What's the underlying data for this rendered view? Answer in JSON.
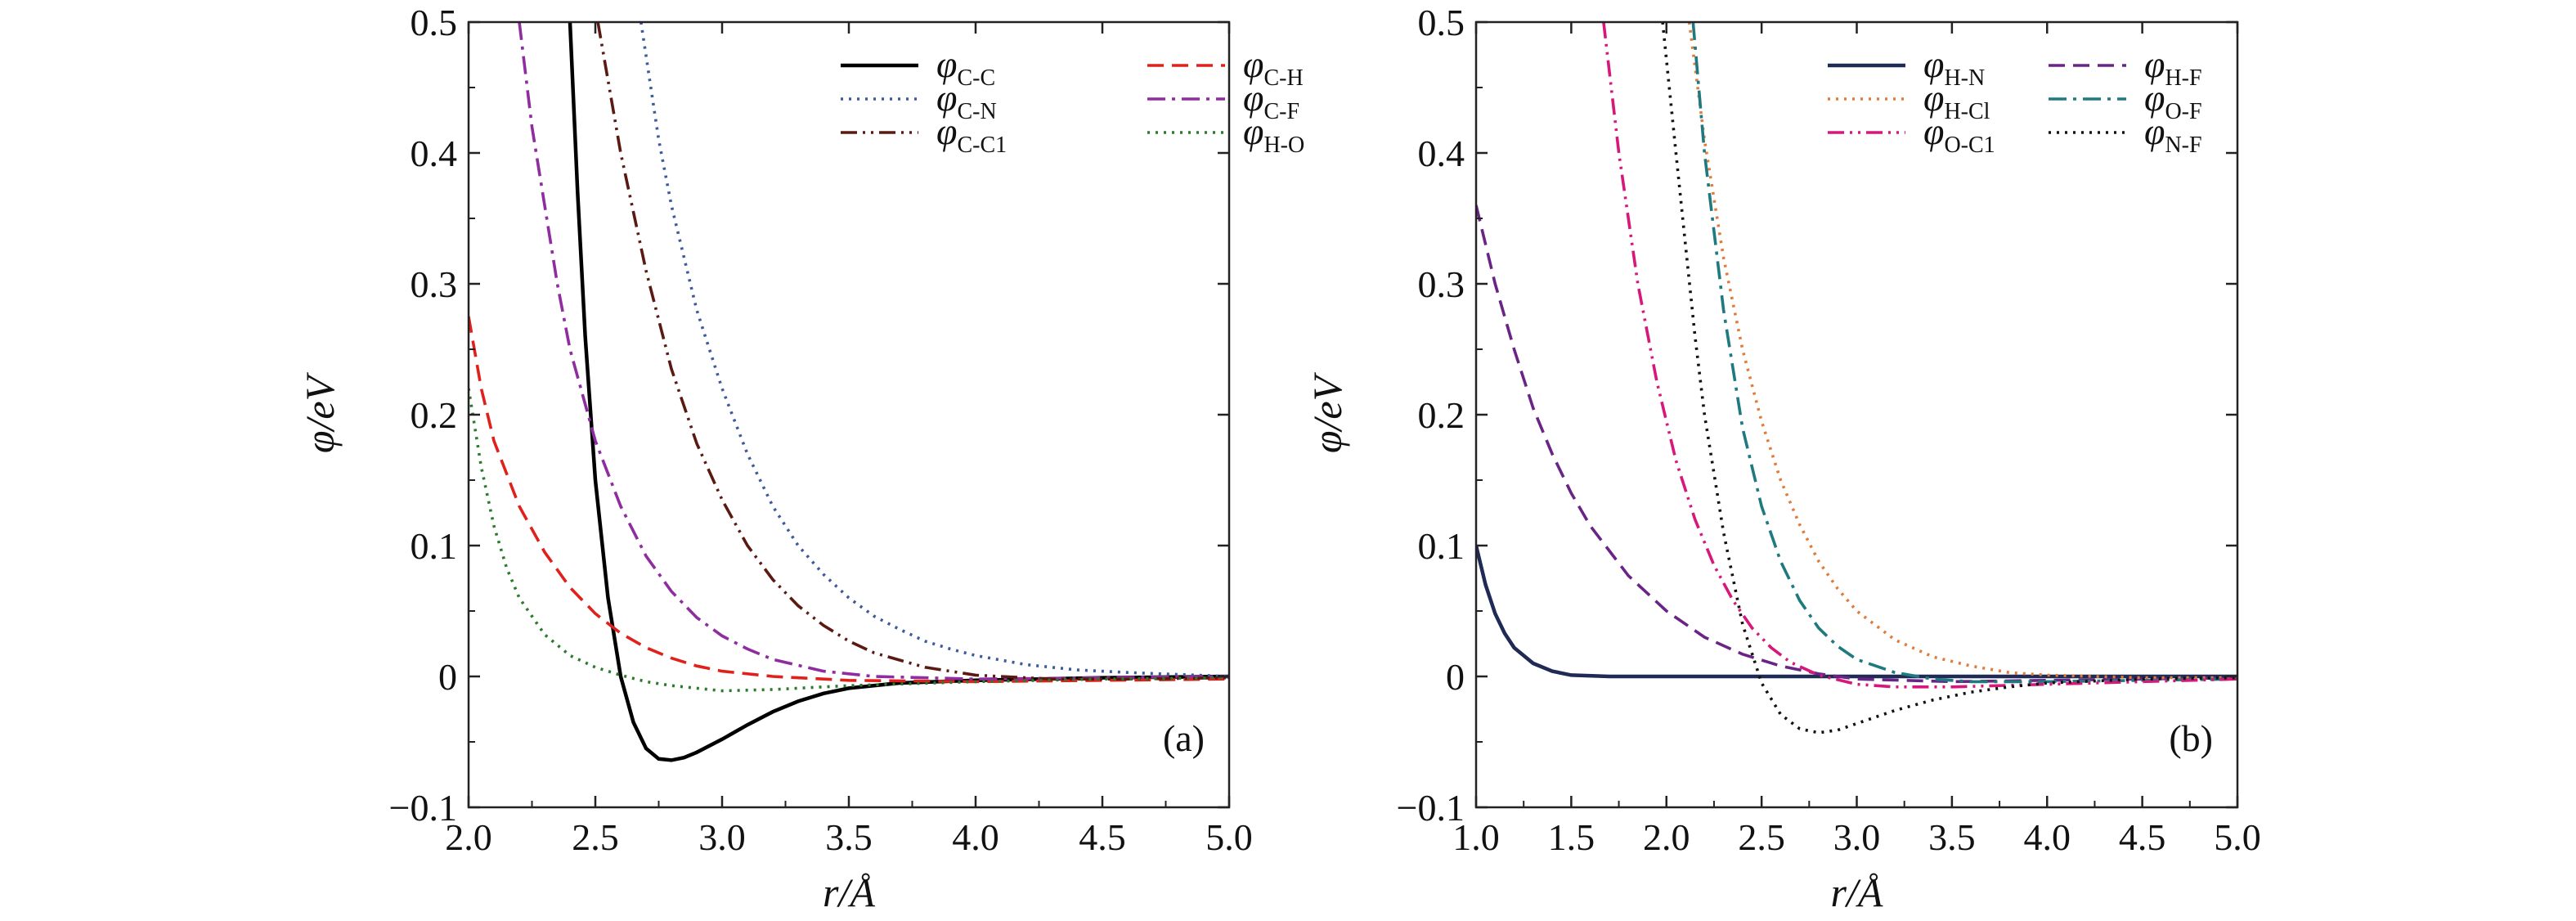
{
  "figure": {
    "panels": [
      {
        "panel_label": "(a)",
        "xlabel": "r/Å",
        "ylabel": "φ/eV",
        "xticks": [
          "2.0",
          "2.5",
          "3.0",
          "3.5",
          "4.0",
          "4.5",
          "5.0"
        ],
        "yticks": [
          "−0.1",
          "0",
          "0.1",
          "0.2",
          "0.3",
          "0.4",
          "0.5"
        ]
      },
      {
        "panel_label": "(b)",
        "xlabel": "r/Å",
        "ylabel": "φ/eV",
        "xticks": [
          "1.0",
          "1.5",
          "2.0",
          "2.5",
          "3.0",
          "3.5",
          "4.0",
          "4.5",
          "5.0"
        ],
        "yticks": [
          "−0.1",
          "0",
          "0.1",
          "0.2",
          "0.3",
          "0.4",
          "0.5"
        ]
      }
    ]
  },
  "chart_data": [
    {
      "type": "line",
      "panel_label": "(a)",
      "xlabel": "r/Å",
      "ylabel": "φ/eV",
      "xlim": [
        2.0,
        5.0
      ],
      "ylim": [
        -0.1,
        0.5
      ],
      "grid": false,
      "legend_position": "top-right",
      "series": [
        {
          "name": "φC-C",
          "symbol": "φ",
          "subscript": "C-C",
          "color": "#000000",
          "dash": "solid",
          "x": [
            2.4,
            2.43,
            2.46,
            2.5,
            2.55,
            2.6,
            2.65,
            2.7,
            2.75,
            2.8,
            2.85,
            2.9,
            3.0,
            3.1,
            3.2,
            3.3,
            3.4,
            3.5,
            3.7,
            4.0,
            4.5,
            5.0
          ],
          "y": [
            0.5,
            0.37,
            0.26,
            0.15,
            0.06,
            0.0,
            -0.035,
            -0.055,
            -0.063,
            -0.064,
            -0.062,
            -0.058,
            -0.048,
            -0.037,
            -0.027,
            -0.019,
            -0.013,
            -0.009,
            -0.005,
            -0.003,
            -0.001,
            0.0
          ]
        },
        {
          "name": "φC-H",
          "symbol": "φ",
          "subscript": "C-H",
          "color": "#e0201b",
          "dash": "dashed",
          "x": [
            2.0,
            2.05,
            2.1,
            2.2,
            2.3,
            2.4,
            2.5,
            2.6,
            2.7,
            2.8,
            2.9,
            3.0,
            3.2,
            3.5,
            4.0,
            4.5,
            5.0
          ],
          "y": [
            0.275,
            0.22,
            0.18,
            0.13,
            0.095,
            0.068,
            0.048,
            0.033,
            0.022,
            0.014,
            0.008,
            0.004,
            0.0,
            -0.003,
            -0.004,
            -0.003,
            -0.002
          ]
        },
        {
          "name": "φC-N",
          "symbol": "φ",
          "subscript": "C-N",
          "color": "#3d5a9a",
          "dash": "dotted",
          "x": [
            2.68,
            2.75,
            2.8,
            2.9,
            3.0,
            3.1,
            3.2,
            3.3,
            3.4,
            3.5,
            3.6,
            3.7,
            3.8,
            3.9,
            4.0,
            4.2,
            4.4,
            4.6,
            5.0
          ],
          "y": [
            0.5,
            0.41,
            0.36,
            0.28,
            0.22,
            0.17,
            0.13,
            0.1,
            0.078,
            0.06,
            0.046,
            0.036,
            0.027,
            0.021,
            0.016,
            0.009,
            0.005,
            0.003,
            0.0
          ]
        },
        {
          "name": "φC-F",
          "symbol": "φ",
          "subscript": "C-F",
          "color": "#8e2ca0",
          "dash": "dashdot",
          "x": [
            2.2,
            2.25,
            2.3,
            2.35,
            2.4,
            2.5,
            2.6,
            2.7,
            2.8,
            2.9,
            3.0,
            3.1,
            3.2,
            3.4,
            3.6,
            4.0,
            4.5,
            5.0
          ],
          "y": [
            0.5,
            0.42,
            0.36,
            0.3,
            0.25,
            0.18,
            0.13,
            0.092,
            0.065,
            0.045,
            0.031,
            0.021,
            0.013,
            0.004,
            0.0,
            -0.002,
            -0.001,
            0.0
          ]
        },
        {
          "name": "φC-C1",
          "symbol": "φ",
          "subscript": "C-C1",
          "color": "#5a1a12",
          "dash": "dashdotdot",
          "x": [
            2.51,
            2.6,
            2.7,
            2.8,
            2.9,
            3.0,
            3.1,
            3.2,
            3.3,
            3.4,
            3.5,
            3.6,
            3.8,
            4.0,
            4.3,
            4.6,
            5.0
          ],
          "y": [
            0.5,
            0.4,
            0.31,
            0.235,
            0.178,
            0.135,
            0.1,
            0.074,
            0.054,
            0.039,
            0.027,
            0.018,
            0.007,
            0.001,
            -0.002,
            -0.002,
            -0.001
          ]
        },
        {
          "name": "φH-O",
          "symbol": "φ",
          "subscript": "H-O",
          "color": "#2c7a2c",
          "dash": "dotted",
          "x": [
            2.0,
            2.05,
            2.1,
            2.15,
            2.2,
            2.3,
            2.4,
            2.5,
            2.6,
            2.7,
            2.8,
            3.0,
            3.2,
            3.5,
            4.0,
            4.5,
            5.0
          ],
          "y": [
            0.22,
            0.16,
            0.115,
            0.083,
            0.06,
            0.032,
            0.016,
            0.007,
            0.001,
            -0.004,
            -0.007,
            -0.011,
            -0.01,
            -0.007,
            -0.004,
            -0.002,
            -0.001
          ]
        }
      ]
    },
    {
      "type": "line",
      "panel_label": "(b)",
      "xlabel": "r/Å",
      "ylabel": "φ/eV",
      "xlim": [
        1.0,
        5.0
      ],
      "ylim": [
        -0.1,
        0.5
      ],
      "grid": false,
      "legend_position": "top-right",
      "series": [
        {
          "name": "φH-N",
          "symbol": "φ",
          "subscript": "H-N",
          "color": "#1f2a55",
          "dash": "solid",
          "x": [
            1.0,
            1.05,
            1.1,
            1.15,
            1.2,
            1.3,
            1.4,
            1.5,
            1.7,
            2.0,
            3.0,
            4.0,
            5.0
          ],
          "y": [
            0.1,
            0.07,
            0.048,
            0.033,
            0.022,
            0.01,
            0.004,
            0.001,
            0.0,
            0.0,
            0.0,
            0.0,
            0.0
          ]
        },
        {
          "name": "φH-F",
          "symbol": "φ",
          "subscript": "H-F",
          "color": "#6a2485",
          "dash": "dashed",
          "x": [
            1.0,
            1.1,
            1.2,
            1.3,
            1.4,
            1.5,
            1.6,
            1.8,
            2.0,
            2.2,
            2.4,
            2.6,
            2.8,
            3.0,
            3.5,
            4.0,
            5.0
          ],
          "y": [
            0.36,
            0.3,
            0.25,
            0.205,
            0.17,
            0.14,
            0.115,
            0.077,
            0.05,
            0.03,
            0.017,
            0.008,
            0.002,
            -0.002,
            -0.004,
            -0.003,
            -0.001
          ]
        },
        {
          "name": "φH-Cl",
          "symbol": "φ",
          "subscript": "H-Cl",
          "color": "#e07b3a",
          "dash": "dotted",
          "x": [
            2.12,
            2.2,
            2.3,
            2.4,
            2.5,
            2.6,
            2.7,
            2.8,
            2.9,
            3.0,
            3.2,
            3.4,
            3.6,
            3.8,
            4.0,
            4.5,
            5.0
          ],
          "y": [
            0.5,
            0.41,
            0.32,
            0.25,
            0.195,
            0.15,
            0.116,
            0.088,
            0.067,
            0.05,
            0.028,
            0.015,
            0.008,
            0.003,
            0.001,
            -0.001,
            -0.001
          ]
        },
        {
          "name": "φO-F",
          "symbol": "φ",
          "subscript": "O-F",
          "color": "#1f7a80",
          "dash": "dashdot",
          "x": [
            2.14,
            2.2,
            2.3,
            2.4,
            2.5,
            2.6,
            2.7,
            2.8,
            2.9,
            3.0,
            3.2,
            3.4,
            3.6,
            4.0,
            4.5,
            5.0
          ],
          "y": [
            0.5,
            0.4,
            0.28,
            0.19,
            0.13,
            0.088,
            0.058,
            0.037,
            0.023,
            0.013,
            0.003,
            -0.002,
            -0.004,
            -0.004,
            -0.003,
            -0.002
          ]
        },
        {
          "name": "φO-C1",
          "symbol": "φ",
          "subscript": "O-C1",
          "color": "#d6187a",
          "dash": "dashdotdot",
          "x": [
            1.67,
            1.75,
            1.85,
            1.95,
            2.05,
            2.15,
            2.25,
            2.35,
            2.45,
            2.55,
            2.65,
            2.8,
            3.0,
            3.2,
            3.5,
            4.0,
            4.5,
            5.0
          ],
          "y": [
            0.5,
            0.4,
            0.3,
            0.225,
            0.165,
            0.12,
            0.085,
            0.058,
            0.037,
            0.022,
            0.011,
            0.001,
            -0.006,
            -0.008,
            -0.008,
            -0.006,
            -0.004,
            -0.002
          ]
        },
        {
          "name": "φN-F",
          "symbol": "φ",
          "subscript": "N-F",
          "color": "#111111",
          "dash": "dotted",
          "x": [
            1.98,
            2.05,
            2.1,
            2.15,
            2.2,
            2.3,
            2.4,
            2.5,
            2.6,
            2.7,
            2.8,
            2.9,
            3.0,
            3.2,
            3.4,
            3.6,
            3.8,
            4.0,
            4.5,
            5.0
          ],
          "y": [
            0.5,
            0.4,
            0.33,
            0.26,
            0.2,
            0.11,
            0.04,
            -0.005,
            -0.029,
            -0.04,
            -0.043,
            -0.041,
            -0.036,
            -0.026,
            -0.018,
            -0.012,
            -0.008,
            -0.005,
            -0.002,
            -0.001
          ]
        }
      ]
    }
  ]
}
